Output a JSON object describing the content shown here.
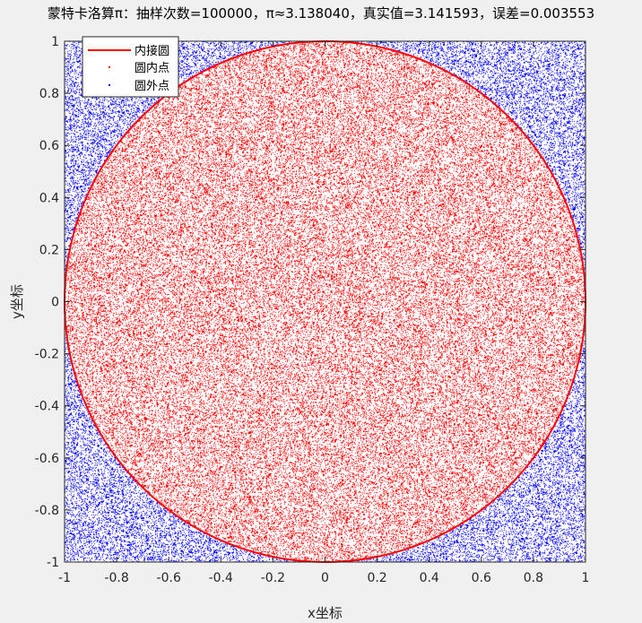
{
  "figure": {
    "background": "#f0f0f0",
    "axes_background": "#ffffff"
  },
  "chart_data": {
    "type": "scatter",
    "title": "蒙特卡洛算π：抽样次数=100000，π≈3.138040，真实值=3.141593，误差=0.003553",
    "xlabel": "x坐标",
    "ylabel": "y坐标",
    "xlim": [
      -1,
      1
    ],
    "ylim": [
      -1,
      1
    ],
    "xticks": [
      -1,
      -0.8,
      -0.6,
      -0.4,
      -0.2,
      0,
      0.2,
      0.4,
      0.6,
      0.8,
      1
    ],
    "yticks": [
      -1,
      -0.8,
      -0.6,
      -0.4,
      -0.2,
      0,
      0.2,
      0.4,
      0.6,
      0.8,
      1
    ],
    "xtick_labels": [
      "-1",
      "-0.8",
      "-0.6",
      "-0.4",
      "-0.2",
      "0",
      "0.2",
      "0.4",
      "0.6",
      "0.8",
      "1"
    ],
    "ytick_labels": [
      "-1",
      "-0.8",
      "-0.6",
      "-0.4",
      "-0.2",
      "0",
      "0.2",
      "0.4",
      "0.6",
      "0.8",
      "1"
    ],
    "grid": false,
    "legend_position": "top-left",
    "sample_count": 100000,
    "pi_estimate": 3.13804,
    "pi_true": 3.141593,
    "error": 0.003553,
    "series": [
      {
        "name": "内接圆",
        "kind": "line",
        "shape": "circle",
        "center": [
          0,
          0
        ],
        "radius": 1,
        "color": "#ff0000"
      },
      {
        "name": "圆内点",
        "kind": "points",
        "region": "inside-circle",
        "color": "#ff0000",
        "count_estimate": 78451
      },
      {
        "name": "圆外点",
        "kind": "points",
        "region": "outside-circle",
        "color": "#0000ff",
        "count_estimate": 21549
      }
    ]
  }
}
